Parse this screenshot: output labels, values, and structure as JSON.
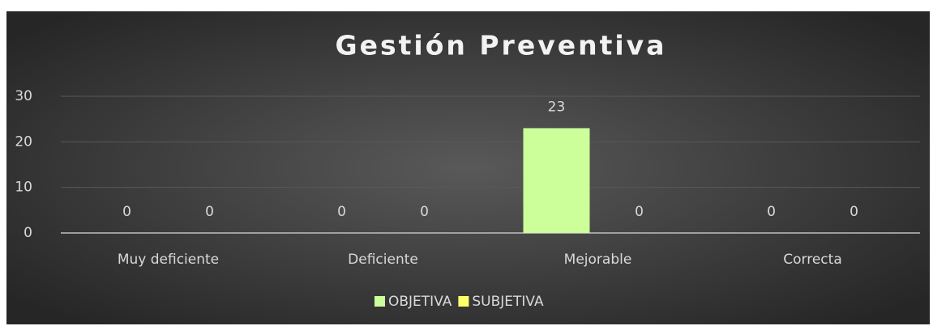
{
  "chart_data": {
    "type": "bar",
    "title": "Gestión Preventiva",
    "categories": [
      "Muy deficiente",
      "Deficiente",
      "Mejorable",
      "Correcta"
    ],
    "series": [
      {
        "name": "OBJETIVA",
        "color": "#ccff99",
        "values": [
          0,
          0,
          23,
          0
        ]
      },
      {
        "name": "SUBJETIVA",
        "color": "#ffff66",
        "values": [
          0,
          0,
          0,
          0
        ]
      }
    ],
    "ylim": [
      0,
      30
    ],
    "yticks": [
      0,
      10,
      20,
      30
    ],
    "grid": true,
    "legend": "bottom",
    "data_labels": true
  }
}
